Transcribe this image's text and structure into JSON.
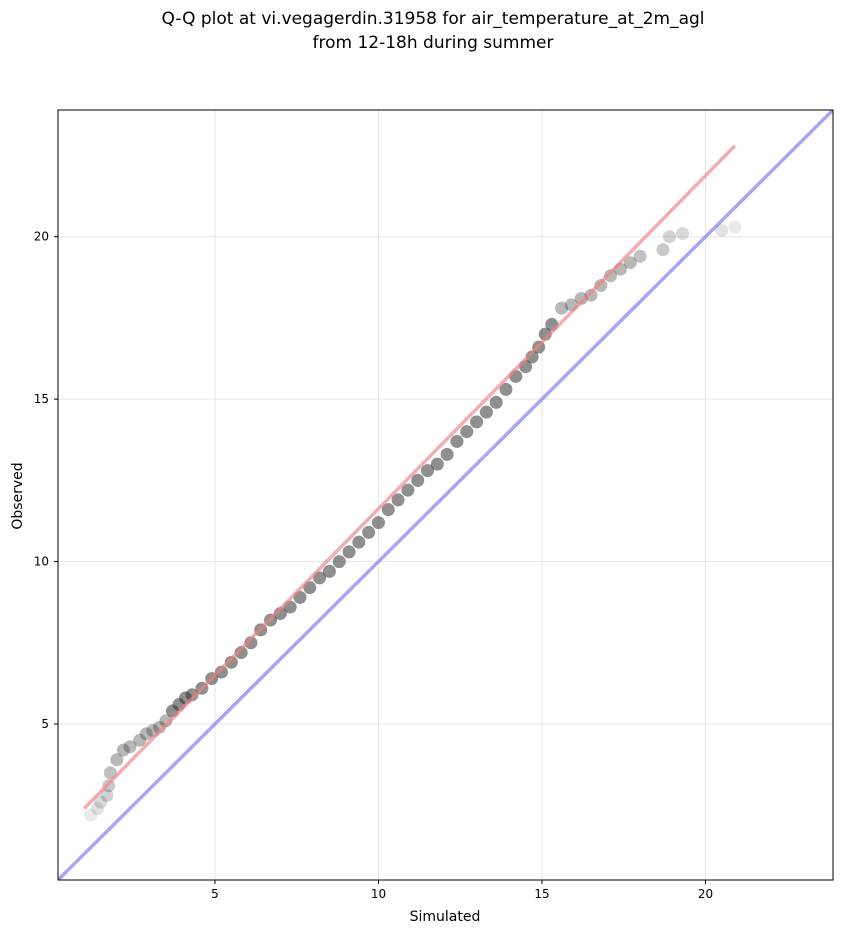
{
  "chart_data": {
    "type": "scatter",
    "title_lines": [
      "Q-Q plot at vi.vegagerdin.31958 for air_temperature_at_2m_agl",
      "from 12-18h during summer"
    ],
    "xlabel": "Simulated",
    "ylabel": "Observed",
    "xlim": [
      0.2,
      23.9
    ],
    "ylim": [
      0.2,
      23.9
    ],
    "xticks": [
      5,
      10,
      15,
      20
    ],
    "yticks": [
      5,
      10,
      15,
      20
    ],
    "grid": true,
    "colors": {
      "points": "#333333",
      "fit_line": "#f08080",
      "identity_line": "#8080f0",
      "grid": "#e6e6e6"
    },
    "series": [
      {
        "kind": "points",
        "x": [
          1.2,
          1.4,
          1.5,
          1.7,
          1.75,
          1.8,
          2.0,
          2.2,
          2.4,
          2.7,
          2.9,
          3.1,
          3.3,
          3.5,
          3.7,
          3.9,
          4.1,
          4.3,
          4.6,
          4.9,
          5.2,
          5.5,
          5.8,
          6.1,
          6.4,
          6.7,
          7.0,
          7.3,
          7.6,
          7.9,
          8.2,
          8.5,
          8.8,
          9.1,
          9.4,
          9.7,
          10.0,
          10.3,
          10.6,
          10.9,
          11.2,
          11.5,
          11.8,
          12.1,
          12.4,
          12.7,
          13.0,
          13.3,
          13.6,
          13.9,
          14.2,
          14.5,
          14.7,
          14.9,
          15.1,
          15.3,
          15.6,
          15.9,
          16.2,
          16.5,
          16.8,
          17.1,
          17.4,
          17.7,
          18.0,
          18.7,
          18.9,
          19.3,
          20.5,
          20.9
        ],
        "y": [
          2.2,
          2.4,
          2.6,
          2.8,
          3.1,
          3.5,
          3.9,
          4.2,
          4.3,
          4.5,
          4.7,
          4.8,
          4.9,
          5.1,
          5.4,
          5.6,
          5.8,
          5.9,
          6.1,
          6.4,
          6.6,
          6.9,
          7.2,
          7.5,
          7.9,
          8.2,
          8.4,
          8.6,
          8.9,
          9.2,
          9.5,
          9.7,
          10.0,
          10.3,
          10.6,
          10.9,
          11.2,
          11.6,
          11.9,
          12.2,
          12.5,
          12.8,
          13.0,
          13.3,
          13.7,
          14.0,
          14.3,
          14.6,
          14.9,
          15.3,
          15.7,
          16.0,
          16.3,
          16.6,
          17.0,
          17.3,
          17.8,
          17.9,
          18.1,
          18.2,
          18.5,
          18.8,
          19.0,
          19.2,
          19.4,
          19.6,
          20.0,
          20.1,
          20.2,
          20.3
        ]
      },
      {
        "kind": "fit_line",
        "x": [
          1.0,
          20.9
        ],
        "y": [
          2.4,
          22.8
        ]
      },
      {
        "kind": "identity_line",
        "x": [
          0.2,
          23.9
        ],
        "y": [
          0.2,
          23.9
        ]
      }
    ]
  }
}
